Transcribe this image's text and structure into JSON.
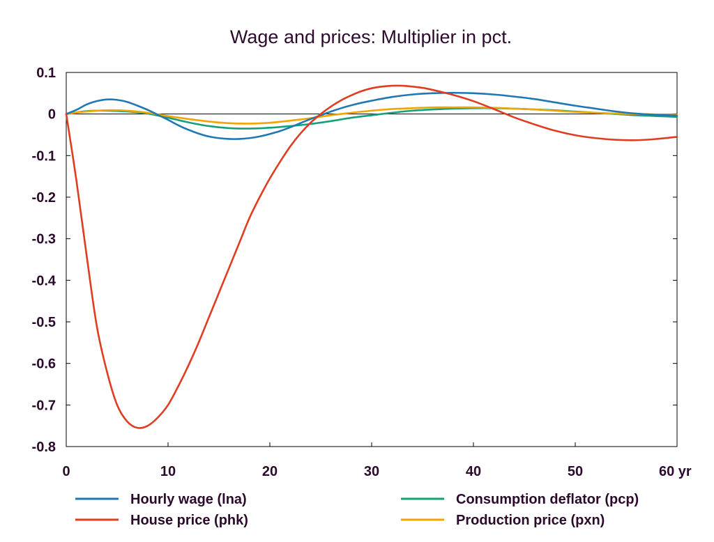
{
  "chart_data": {
    "type": "line",
    "title": "Wage and prices: Multiplier in pct.",
    "xlabel": "",
    "ylabel": "",
    "xlim": [
      0,
      60
    ],
    "ylim": [
      -0.8,
      0.1
    ],
    "x_ticks": [
      0,
      10,
      20,
      30,
      40,
      50,
      60
    ],
    "x_tick_labels": [
      "0",
      "10",
      "20",
      "30",
      "40",
      "50",
      "60 yr"
    ],
    "y_ticks": [
      0.1,
      0,
      -0.1,
      -0.2,
      -0.3,
      -0.4,
      -0.5,
      -0.6,
      -0.7,
      -0.8
    ],
    "y_tick_labels": [
      "0.1",
      "0",
      "-0.1",
      "-0.2",
      "-0.3",
      "-0.4",
      "-0.5",
      "-0.6",
      "-0.7",
      "-0.8"
    ],
    "grid": false,
    "legend_position": "bottom",
    "series": [
      {
        "name": "Hourly wage (lna)",
        "color": "#1f77b4",
        "x": [
          0,
          1,
          2,
          3,
          4,
          5,
          6,
          7,
          8,
          9,
          10,
          11,
          12,
          13,
          14,
          15,
          16,
          17,
          18,
          19,
          20,
          21,
          22,
          23,
          24,
          25,
          26,
          27,
          28,
          29,
          30,
          32,
          34,
          36,
          38,
          40,
          42,
          44,
          46,
          48,
          50,
          52,
          54,
          56,
          58,
          60
        ],
        "y": [
          0,
          0.01,
          0.023,
          0.031,
          0.035,
          0.034,
          0.029,
          0.02,
          0.01,
          -0.002,
          -0.014,
          -0.027,
          -0.038,
          -0.047,
          -0.054,
          -0.058,
          -0.06,
          -0.06,
          -0.058,
          -0.054,
          -0.048,
          -0.041,
          -0.032,
          -0.022,
          -0.012,
          -0.003,
          0.006,
          0.014,
          0.021,
          0.027,
          0.032,
          0.041,
          0.047,
          0.05,
          0.051,
          0.05,
          0.047,
          0.042,
          0.036,
          0.028,
          0.02,
          0.013,
          0.006,
          0.001,
          -0.002,
          -0.004
        ]
      },
      {
        "name": "House price (phk)",
        "color": "#e03c20",
        "x": [
          0,
          1,
          2,
          3,
          4,
          5,
          6,
          7,
          8,
          9,
          10,
          11,
          12,
          13,
          14,
          15,
          16,
          17,
          18,
          19,
          20,
          21,
          22,
          23,
          24,
          25,
          26,
          27,
          28,
          29,
          30,
          31,
          32,
          33,
          34,
          35,
          36,
          38,
          40,
          42,
          44,
          46,
          48,
          50,
          52,
          54,
          56,
          58,
          60
        ],
        "y": [
          0,
          -0.16,
          -0.34,
          -0.51,
          -0.62,
          -0.7,
          -0.74,
          -0.755,
          -0.75,
          -0.73,
          -0.7,
          -0.655,
          -0.605,
          -0.55,
          -0.49,
          -0.43,
          -0.37,
          -0.31,
          -0.25,
          -0.2,
          -0.155,
          -0.115,
          -0.078,
          -0.047,
          -0.021,
          0,
          0.018,
          0.033,
          0.045,
          0.055,
          0.062,
          0.066,
          0.068,
          0.068,
          0.066,
          0.063,
          0.058,
          0.046,
          0.031,
          0.012,
          -0.008,
          -0.025,
          -0.04,
          -0.051,
          -0.058,
          -0.062,
          -0.063,
          -0.06,
          -0.055
        ]
      },
      {
        "name": "Consumption deflator (pcp)",
        "color": "#15a07a",
        "x": [
          0,
          2,
          4,
          6,
          8,
          10,
          12,
          14,
          16,
          18,
          20,
          22,
          24,
          26,
          28,
          30,
          32,
          34,
          36,
          38,
          40,
          42,
          44,
          46,
          48,
          50,
          52,
          54,
          56,
          58,
          60
        ],
        "y": [
          0,
          0.007,
          0.008,
          0.006,
          0.001,
          -0.009,
          -0.02,
          -0.029,
          -0.034,
          -0.035,
          -0.033,
          -0.029,
          -0.024,
          -0.017,
          -0.009,
          -0.003,
          0.003,
          0.008,
          0.011,
          0.013,
          0.014,
          0.014,
          0.013,
          0.011,
          0.009,
          0.006,
          0.003,
          0,
          -0.003,
          -0.005,
          -0.007
        ]
      },
      {
        "name": "Production price (pxn)",
        "color": "#f0a500",
        "x": [
          0,
          2,
          4,
          6,
          8,
          10,
          12,
          14,
          16,
          18,
          20,
          22,
          24,
          26,
          28,
          30,
          32,
          34,
          36,
          38,
          40,
          42,
          44,
          46,
          48,
          50,
          52,
          54,
          56,
          58,
          60
        ],
        "y": [
          0,
          0.006,
          0.009,
          0.008,
          0.003,
          -0.005,
          -0.012,
          -0.018,
          -0.022,
          -0.023,
          -0.021,
          -0.016,
          -0.01,
          -0.003,
          0.003,
          0.008,
          0.012,
          0.014,
          0.016,
          0.016,
          0.016,
          0.015,
          0.013,
          0.011,
          0.008,
          0.005,
          0.003,
          0.001,
          0,
          -0.001,
          -0.002
        ]
      }
    ]
  }
}
